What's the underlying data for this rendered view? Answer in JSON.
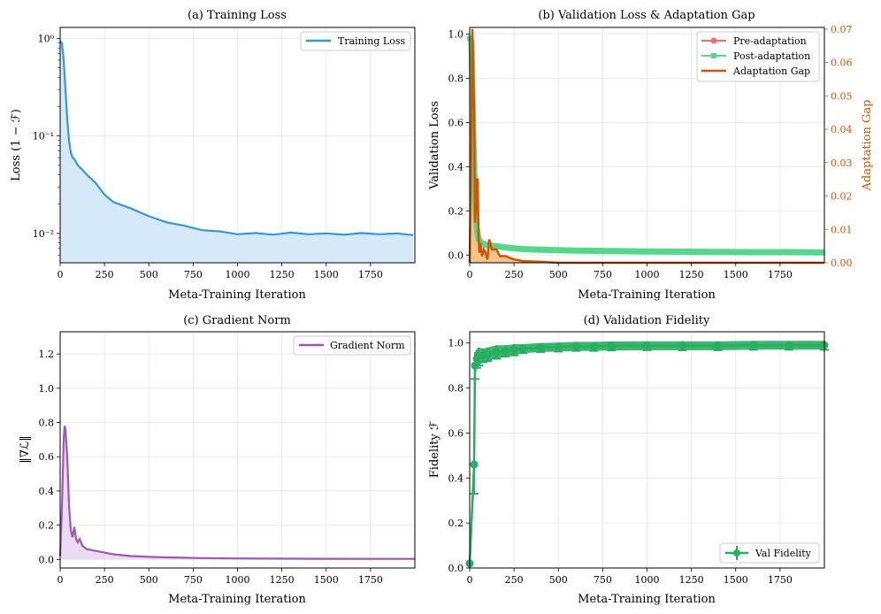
{
  "chart_data": [
    {
      "id": "a",
      "type": "line",
      "title": "(a) Training Loss",
      "xlabel": "Meta-Training Iteration",
      "ylabel": "Loss (1 − ℱ)",
      "yscale": "log",
      "xlim": [
        0,
        2000
      ],
      "ylim": [
        0.005,
        1.3
      ],
      "xticks": [
        0,
        250,
        500,
        750,
        1000,
        1250,
        1500,
        1750
      ],
      "xtick_labels": [
        "0",
        "250",
        "500",
        "750",
        "1000",
        "1250",
        "1500",
        "1750"
      ],
      "yticks": [
        0.01,
        0.1,
        1
      ],
      "ytick_labels": [
        "10⁻²",
        "10⁻¹",
        "10⁰"
      ],
      "legend": {
        "position": "top-right",
        "entries": [
          "Training Loss"
        ]
      },
      "colors": {
        "line": "#3498db",
        "fill": "#d6e9f8"
      },
      "series": [
        {
          "name": "Training Loss",
          "x": [
            0,
            10,
            20,
            30,
            40,
            50,
            60,
            70,
            80,
            100,
            125,
            150,
            200,
            250,
            300,
            400,
            500,
            600,
            700,
            800,
            900,
            1000,
            1100,
            1200,
            1300,
            1400,
            1500,
            1600,
            1700,
            1800,
            1900,
            1990
          ],
          "y": [
            0.95,
            0.9,
            0.6,
            0.3,
            0.15,
            0.09,
            0.068,
            0.06,
            0.058,
            0.05,
            0.045,
            0.04,
            0.033,
            0.025,
            0.021,
            0.018,
            0.015,
            0.013,
            0.012,
            0.0108,
            0.0105,
            0.0098,
            0.0101,
            0.0097,
            0.0102,
            0.0098,
            0.01,
            0.0097,
            0.0101,
            0.0098,
            0.01,
            0.0096
          ]
        }
      ]
    },
    {
      "id": "b",
      "type": "line",
      "title": "(b) Validation Loss & Adaptation Gap",
      "xlabel": "Meta-Training Iteration",
      "ylabel": "Validation Loss",
      "ylabel_right": "Adaptation Gap",
      "xlim": [
        0,
        2000
      ],
      "ylim": [
        -0.035,
        1.03
      ],
      "ylim_right": [
        0,
        0.0705
      ],
      "xticks": [
        0,
        250,
        500,
        750,
        1000,
        1250,
        1500,
        1750
      ],
      "xtick_labels": [
        "0",
        "250",
        "500",
        "750",
        "1000",
        "1250",
        "1500",
        "1750"
      ],
      "yticks": [
        0.0,
        0.2,
        0.4,
        0.6,
        0.8,
        1.0
      ],
      "ytick_labels": [
        "0.0",
        "0.2",
        "0.4",
        "0.6",
        "0.8",
        "1.0"
      ],
      "yticks_right": [
        0.0,
        0.01,
        0.02,
        0.03,
        0.04,
        0.05,
        0.06,
        0.07
      ],
      "ytick_labels_right": [
        "0.00",
        "0.01",
        "0.02",
        "0.03",
        "0.04",
        "0.05",
        "0.06",
        "0.07"
      ],
      "legend": {
        "position": "top-right",
        "entries": [
          "Pre-adaptation",
          "Post-adaptation",
          "Adaptation Gap"
        ]
      },
      "colors": {
        "pre": "#e74c3c",
        "post": "#2ecc71",
        "gap": "#d35400",
        "gap_fill": "#f5c48a"
      },
      "series": [
        {
          "name": "Pre-adaptation",
          "x": [
            0,
            10,
            20,
            30,
            40,
            50,
            75,
            100,
            150,
            200,
            250,
            300,
            400,
            500,
            600,
            700,
            800,
            900,
            1000,
            1200,
            1400,
            1600,
            1800,
            2000
          ],
          "y": [
            0.99,
            0.99,
            0.6,
            0.3,
            0.15,
            0.09,
            0.06,
            0.05,
            0.04,
            0.035,
            0.03,
            0.027,
            0.024,
            0.022,
            0.02,
            0.019,
            0.018,
            0.017,
            0.016,
            0.015,
            0.014,
            0.013,
            0.013,
            0.012
          ]
        },
        {
          "name": "Post-adaptation",
          "x": [
            0,
            10,
            20,
            30,
            40,
            50,
            75,
            100,
            150,
            200,
            250,
            300,
            400,
            500,
            600,
            700,
            800,
            900,
            1000,
            1200,
            1400,
            1600,
            1800,
            2000
          ],
          "y": [
            0.98,
            0.97,
            0.55,
            0.25,
            0.12,
            0.07,
            0.05,
            0.045,
            0.04,
            0.035,
            0.03,
            0.027,
            0.024,
            0.022,
            0.02,
            0.019,
            0.018,
            0.017,
            0.016,
            0.015,
            0.014,
            0.013,
            0.013,
            0.012
          ]
        },
        {
          "name": "Adaptation Gap",
          "axis": "right",
          "x": [
            0,
            10,
            15,
            20,
            25,
            30,
            35,
            40,
            45,
            50,
            55,
            60,
            70,
            80,
            90,
            100,
            110,
            125,
            150,
            170,
            200,
            250,
            300,
            400,
            500,
            700,
            1000,
            1500,
            2000
          ],
          "y": [
            0.0,
            0.038,
            0.07,
            0.058,
            0.045,
            0.012,
            0.016,
            0.025,
            0.025,
            0.008,
            0.003,
            0.006,
            0.002,
            0.004,
            0.003,
            0.001,
            0.007,
            0.004,
            0.004,
            0.002,
            0.002,
            0.001,
            0.0005,
            0.0003,
            0.0,
            0.0,
            0.0,
            0.0,
            0.0
          ]
        }
      ]
    },
    {
      "id": "c",
      "type": "line",
      "title": "(c) Gradient Norm",
      "xlabel": "Meta-Training Iteration",
      "ylabel": "‖∇ℒ‖",
      "xlim": [
        0,
        2000
      ],
      "ylim": [
        -0.05,
        1.33
      ],
      "xticks": [
        0,
        250,
        500,
        750,
        1000,
        1250,
        1500,
        1750
      ],
      "xtick_labels": [
        "0",
        "250",
        "500",
        "750",
        "1000",
        "1250",
        "1500",
        "1750"
      ],
      "yticks": [
        0.0,
        0.2,
        0.4,
        0.6,
        0.8,
        1.0,
        1.2
      ],
      "ytick_labels": [
        "0.0",
        "0.2",
        "0.4",
        "0.6",
        "0.8",
        "1.0",
        "1.2"
      ],
      "legend": {
        "position": "top-right",
        "entries": [
          "Gradient Norm"
        ]
      },
      "colors": {
        "line": "#9b59b6",
        "fill": "#ecdcf3"
      },
      "series": [
        {
          "name": "Gradient Norm",
          "x": [
            0,
            10,
            20,
            25,
            30,
            40,
            50,
            60,
            70,
            80,
            90,
            100,
            110,
            125,
            150,
            175,
            200,
            250,
            300,
            400,
            500,
            600,
            700,
            800,
            1000,
            1200,
            1500,
            2000
          ],
          "y": [
            0.02,
            0.3,
            0.7,
            0.78,
            0.76,
            0.6,
            0.32,
            0.17,
            0.13,
            0.19,
            0.12,
            0.1,
            0.12,
            0.08,
            0.06,
            0.055,
            0.05,
            0.04,
            0.03,
            0.02,
            0.015,
            0.012,
            0.01,
            0.008,
            0.006,
            0.005,
            0.004,
            0.003
          ]
        }
      ]
    },
    {
      "id": "d",
      "type": "line",
      "title": "(d) Validation Fidelity",
      "xlabel": "Meta-Training Iteration",
      "ylabel": "Fidelity ℱ",
      "xlim": [
        0,
        2000
      ],
      "ylim": [
        0,
        1.05
      ],
      "xticks": [
        0,
        250,
        500,
        750,
        1000,
        1250,
        1500,
        1750
      ],
      "xtick_labels": [
        "0",
        "250",
        "500",
        "750",
        "1000",
        "1250",
        "1500",
        "1750"
      ],
      "yticks": [
        0.0,
        0.2,
        0.4,
        0.6,
        0.8,
        1.0
      ],
      "ytick_labels": [
        "0.0",
        "0.2",
        "0.4",
        "0.6",
        "0.8",
        "1.0"
      ],
      "legend": {
        "position": "bottom-right",
        "entries": [
          "Val Fidelity"
        ]
      },
      "colors": {
        "line": "#27ae60"
      },
      "series": [
        {
          "name": "Val Fidelity",
          "x": [
            0,
            25,
            30,
            40,
            50,
            75,
            100,
            150,
            200,
            250,
            300,
            400,
            500,
            600,
            700,
            800,
            1000,
            1200,
            1400,
            1600,
            1800,
            2000
          ],
          "y": [
            0.02,
            0.46,
            0.9,
            0.93,
            0.94,
            0.945,
            0.95,
            0.96,
            0.965,
            0.97,
            0.975,
            0.98,
            0.982,
            0.985,
            0.985,
            0.987,
            0.988,
            0.988,
            0.988,
            0.99,
            0.99,
            0.99
          ],
          "err": [
            0.0,
            0.13,
            0.06,
            0.04,
            0.04,
            0.03,
            0.03,
            0.03,
            0.025,
            0.025,
            0.02,
            0.02,
            0.02,
            0.02,
            0.02,
            0.02,
            0.02,
            0.02,
            0.02,
            0.02,
            0.02,
            0.02
          ]
        }
      ]
    }
  ]
}
